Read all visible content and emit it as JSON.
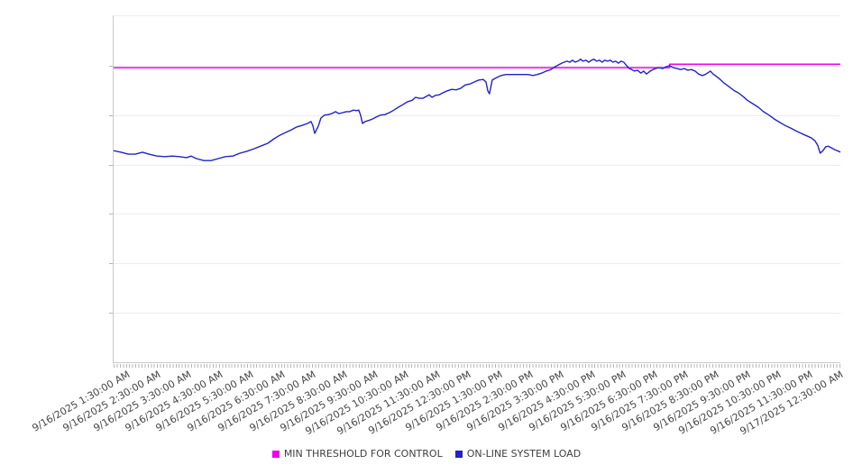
{
  "chart_data": {
    "type": "line",
    "title": "",
    "xlabel": "",
    "ylabel": "",
    "legend_position": "bottom-center",
    "grid": "horizontal-only",
    "x_axis": {
      "unit": "hours since 9/16/2025 12:00 AM",
      "range": [
        1.08,
        24.5
      ],
      "first_tick_hour": 1.5,
      "tick_interval_hours": 1,
      "minor_ticks_per_hour": 10,
      "tick_labels": [
        "9/16/2025 1:30:00 AM",
        "9/16/2025 2:30:00 AM",
        "9/16/2025 3:30:00 AM",
        "9/16/2025 4:30:00 AM",
        "9/16/2025 5:30:00 AM",
        "9/16/2025 6:30:00 AM",
        "9/16/2025 7:30:00 AM",
        "9/16/2025 8:30:00 AM",
        "9/16/2025 9:30:00 AM",
        "9/16/2025 10:30:00 AM",
        "9/16/2025 11:30:00 AM",
        "9/16/2025 12:30:00 PM",
        "9/16/2025 1:30:00 PM",
        "9/16/2025 2:30:00 PM",
        "9/16/2025 3:30:00 PM",
        "9/16/2025 4:30:00 PM",
        "9/16/2025 5:30:00 PM",
        "9/16/2025 6:30:00 PM",
        "9/16/2025 7:30:00 PM",
        "9/16/2025 8:30:00 PM",
        "9/16/2025 9:30:00 PM",
        "9/16/2025 10:30:00 PM",
        "9/16/2025 11:30:00 PM",
        "9/17/2025 12:30:00 AM"
      ]
    },
    "y_axis": {
      "range": [
        0,
        7
      ],
      "gridline_values": [
        1,
        2,
        3,
        4,
        5,
        6
      ],
      "labels_visible": false
    },
    "series": [
      {
        "name": "MIN THRESHOLD FOR CONTROL",
        "color": "#EE00EE",
        "points": [
          [
            1.08,
            5.96
          ],
          [
            19.0,
            5.96
          ],
          [
            19.0,
            6.03
          ],
          [
            24.5,
            6.03
          ]
        ]
      },
      {
        "name": "ON-LINE SYSTEM LOAD",
        "color": "#2222C8",
        "points": [
          [
            1.08,
            4.28
          ],
          [
            1.32,
            4.25
          ],
          [
            1.55,
            4.21
          ],
          [
            1.78,
            4.21
          ],
          [
            2.01,
            4.25
          ],
          [
            2.22,
            4.21
          ],
          [
            2.48,
            4.17
          ],
          [
            2.74,
            4.16
          ],
          [
            2.97,
            4.17
          ],
          [
            3.2,
            4.16
          ],
          [
            3.43,
            4.14
          ],
          [
            3.58,
            4.17
          ],
          [
            3.75,
            4.12
          ],
          [
            3.99,
            4.08
          ],
          [
            4.22,
            4.08
          ],
          [
            4.45,
            4.12
          ],
          [
            4.68,
            4.16
          ],
          [
            4.92,
            4.17
          ],
          [
            5.15,
            4.23
          ],
          [
            5.38,
            4.27
          ],
          [
            5.61,
            4.32
          ],
          [
            5.85,
            4.38
          ],
          [
            6.05,
            4.43
          ],
          [
            6.25,
            4.52
          ],
          [
            6.43,
            4.59
          ],
          [
            6.63,
            4.65
          ],
          [
            6.8,
            4.7
          ],
          [
            6.98,
            4.76
          ],
          [
            7.15,
            4.79
          ],
          [
            7.33,
            4.83
          ],
          [
            7.44,
            4.87
          ],
          [
            7.5,
            4.79
          ],
          [
            7.56,
            4.63
          ],
          [
            7.68,
            4.78
          ],
          [
            7.76,
            4.94
          ],
          [
            7.88,
            5.0
          ],
          [
            8.0,
            5.01
          ],
          [
            8.11,
            5.03
          ],
          [
            8.23,
            5.07
          ],
          [
            8.34,
            5.03
          ],
          [
            8.46,
            5.05
          ],
          [
            8.58,
            5.07
          ],
          [
            8.69,
            5.07
          ],
          [
            8.81,
            5.1
          ],
          [
            8.9,
            5.09
          ],
          [
            8.98,
            5.1
          ],
          [
            9.04,
            5.0
          ],
          [
            9.1,
            4.83
          ],
          [
            9.19,
            4.87
          ],
          [
            9.3,
            4.89
          ],
          [
            9.42,
            4.92
          ],
          [
            9.54,
            4.96
          ],
          [
            9.68,
            5.0
          ],
          [
            9.82,
            5.01
          ],
          [
            9.97,
            5.05
          ],
          [
            10.11,
            5.1
          ],
          [
            10.26,
            5.16
          ],
          [
            10.4,
            5.21
          ],
          [
            10.55,
            5.27
          ],
          [
            10.7,
            5.3
          ],
          [
            10.81,
            5.36
          ],
          [
            10.93,
            5.34
          ],
          [
            11.05,
            5.34
          ],
          [
            11.16,
            5.38
          ],
          [
            11.25,
            5.41
          ],
          [
            11.34,
            5.36
          ],
          [
            11.45,
            5.4
          ],
          [
            11.57,
            5.41
          ],
          [
            11.69,
            5.45
          ],
          [
            11.83,
            5.49
          ],
          [
            11.97,
            5.52
          ],
          [
            12.12,
            5.51
          ],
          [
            12.26,
            5.54
          ],
          [
            12.41,
            5.61
          ],
          [
            12.56,
            5.63
          ],
          [
            12.7,
            5.67
          ],
          [
            12.85,
            5.71
          ],
          [
            12.99,
            5.72
          ],
          [
            13.08,
            5.67
          ],
          [
            13.14,
            5.49
          ],
          [
            13.19,
            5.43
          ],
          [
            13.28,
            5.71
          ],
          [
            13.43,
            5.76
          ],
          [
            13.57,
            5.8
          ],
          [
            13.72,
            5.82
          ],
          [
            13.86,
            5.82
          ],
          [
            14.01,
            5.82
          ],
          [
            14.15,
            5.82
          ],
          [
            14.3,
            5.82
          ],
          [
            14.44,
            5.82
          ],
          [
            14.59,
            5.8
          ],
          [
            14.73,
            5.82
          ],
          [
            14.88,
            5.85
          ],
          [
            15.02,
            5.89
          ],
          [
            15.17,
            5.92
          ],
          [
            15.31,
            5.98
          ],
          [
            15.43,
            6.02
          ],
          [
            15.52,
            6.05
          ],
          [
            15.6,
            6.07
          ],
          [
            15.69,
            6.09
          ],
          [
            15.78,
            6.07
          ],
          [
            15.87,
            6.11
          ],
          [
            15.95,
            6.07
          ],
          [
            16.04,
            6.09
          ],
          [
            16.13,
            6.13
          ],
          [
            16.21,
            6.09
          ],
          [
            16.3,
            6.11
          ],
          [
            16.39,
            6.07
          ],
          [
            16.48,
            6.11
          ],
          [
            16.56,
            6.13
          ],
          [
            16.65,
            6.09
          ],
          [
            16.74,
            6.11
          ],
          [
            16.82,
            6.07
          ],
          [
            16.91,
            6.11
          ],
          [
            17.0,
            6.09
          ],
          [
            17.09,
            6.11
          ],
          [
            17.17,
            6.07
          ],
          [
            17.26,
            6.09
          ],
          [
            17.35,
            6.05
          ],
          [
            17.43,
            6.09
          ],
          [
            17.52,
            6.07
          ],
          [
            17.61,
            6.0
          ],
          [
            17.7,
            5.94
          ],
          [
            17.78,
            5.92
          ],
          [
            17.87,
            5.89
          ],
          [
            17.96,
            5.91
          ],
          [
            18.07,
            5.85
          ],
          [
            18.16,
            5.89
          ],
          [
            18.25,
            5.83
          ],
          [
            18.33,
            5.87
          ],
          [
            18.42,
            5.91
          ],
          [
            18.54,
            5.94
          ],
          [
            18.65,
            5.96
          ],
          [
            18.77,
            5.94
          ],
          [
            18.89,
            5.98
          ],
          [
            19.0,
            6.0
          ],
          [
            19.12,
            5.96
          ],
          [
            19.24,
            5.94
          ],
          [
            19.35,
            5.92
          ],
          [
            19.47,
            5.94
          ],
          [
            19.58,
            5.91
          ],
          [
            19.7,
            5.92
          ],
          [
            19.82,
            5.89
          ],
          [
            19.93,
            5.83
          ],
          [
            20.05,
            5.8
          ],
          [
            20.14,
            5.82
          ],
          [
            20.22,
            5.85
          ],
          [
            20.31,
            5.89
          ],
          [
            20.4,
            5.83
          ],
          [
            20.51,
            5.78
          ],
          [
            20.63,
            5.72
          ],
          [
            20.75,
            5.65
          ],
          [
            20.86,
            5.6
          ],
          [
            20.98,
            5.54
          ],
          [
            21.09,
            5.49
          ],
          [
            21.21,
            5.45
          ],
          [
            21.36,
            5.38
          ],
          [
            21.5,
            5.3
          ],
          [
            21.68,
            5.23
          ],
          [
            21.85,
            5.16
          ],
          [
            22.02,
            5.07
          ],
          [
            22.2,
            5.0
          ],
          [
            22.37,
            4.92
          ],
          [
            22.55,
            4.85
          ],
          [
            22.72,
            4.79
          ],
          [
            22.89,
            4.74
          ],
          [
            23.07,
            4.68
          ],
          [
            23.24,
            4.63
          ],
          [
            23.42,
            4.58
          ],
          [
            23.56,
            4.54
          ],
          [
            23.68,
            4.48
          ],
          [
            23.77,
            4.39
          ],
          [
            23.85,
            4.23
          ],
          [
            23.94,
            4.28
          ],
          [
            24.03,
            4.36
          ],
          [
            24.12,
            4.37
          ],
          [
            24.2,
            4.34
          ],
          [
            24.32,
            4.3
          ],
          [
            24.44,
            4.27
          ],
          [
            24.5,
            4.25
          ]
        ]
      }
    ]
  },
  "legend": {
    "items": [
      {
        "label": "MIN THRESHOLD FOR CONTROL",
        "color": "#EE00EE"
      },
      {
        "label": "ON-LINE SYSTEM LOAD",
        "color": "#2222C8"
      }
    ]
  }
}
